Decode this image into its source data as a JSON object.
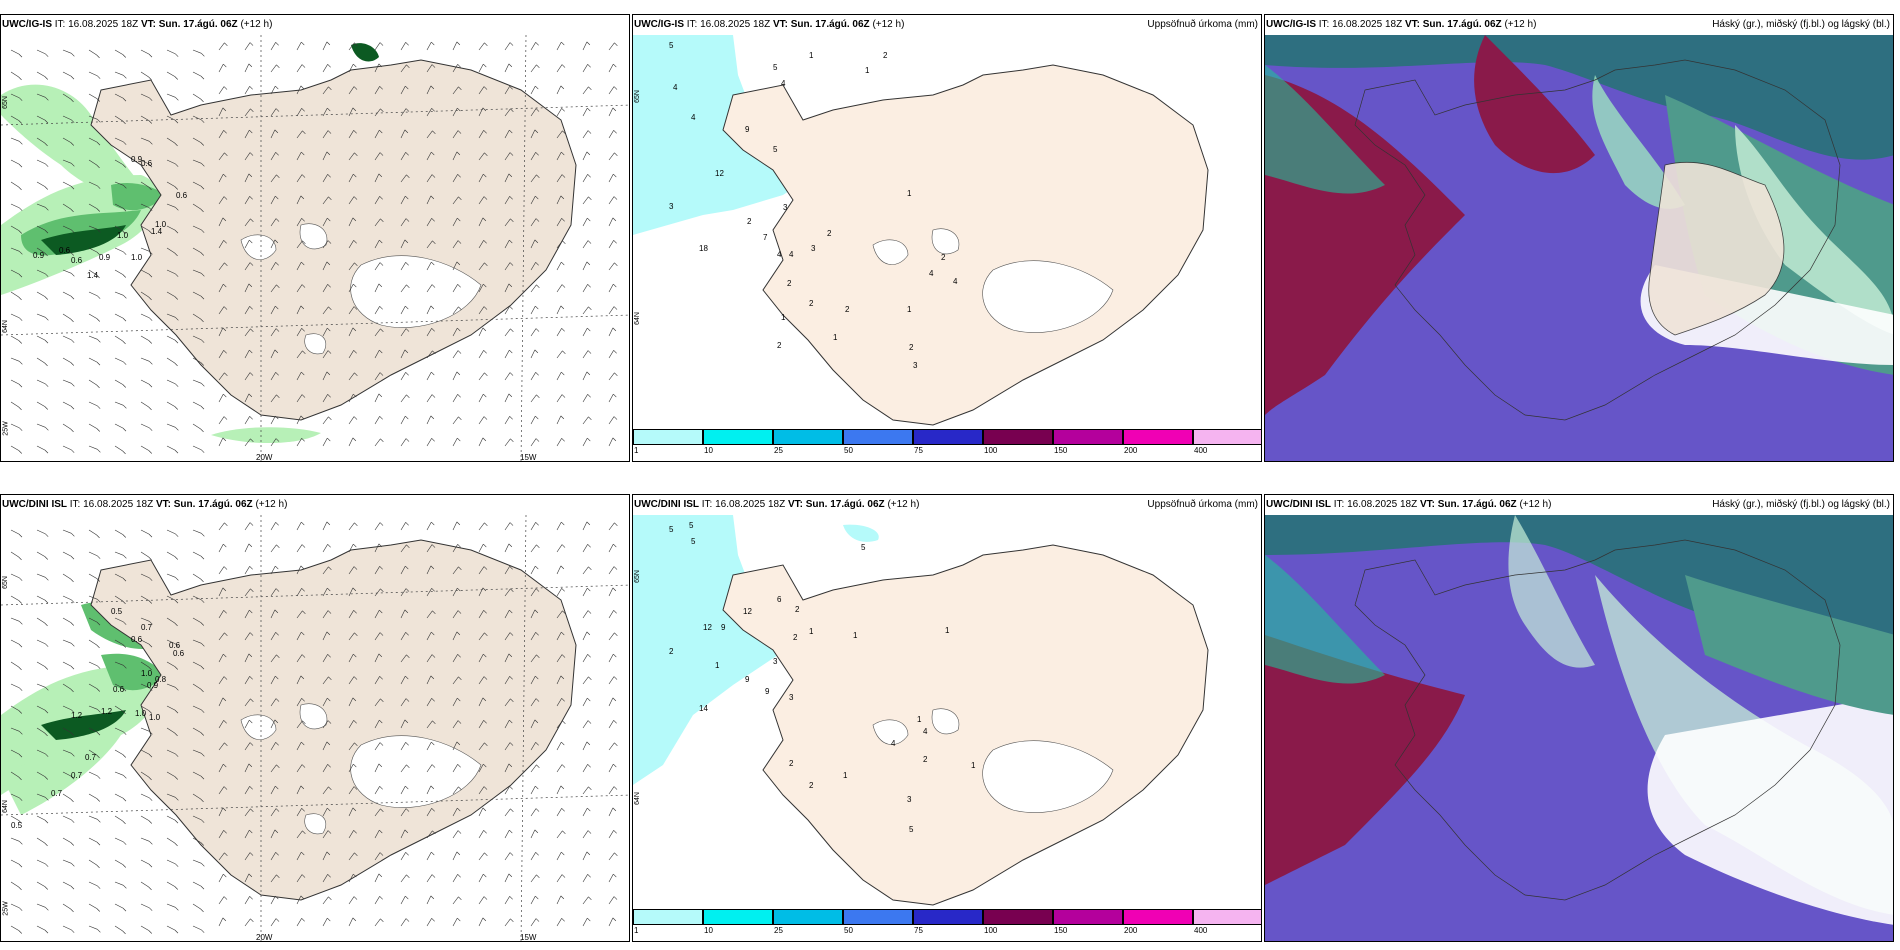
{
  "rows": [
    {
      "model": "UWC/IG-IS",
      "init": "IT: 16.08.2025 18Z",
      "valid_prefix": "VT:",
      "valid": "Sun. 17.ágú. 06Z",
      "lead": "(+12 h)",
      "precip_title": "Uppsöfnuð úrkoma (mm)",
      "cloud_title": "Háský (gr.), miðský (fj.bl.) og lágský (bl.)",
      "wind_values": [
        "0.9",
        "0.6",
        "0.6",
        "0.6",
        "1.0",
        "1.0",
        "0.9",
        "0.6",
        "0.9",
        "1.0",
        "1.4",
        "1.4"
      ],
      "precip_values": [
        "5",
        "1",
        "2",
        "1",
        "4",
        "4",
        "5",
        "4",
        "9",
        "5",
        "12",
        "3",
        "3",
        "2",
        "7",
        "4",
        "4",
        "18",
        "3",
        "2",
        "1",
        "2",
        "4",
        "4",
        "2",
        "2",
        "1",
        "2",
        "2",
        "1",
        "1",
        "2",
        "3"
      ]
    },
    {
      "model": "UWC/DINI ISL",
      "init": "IT: 16.08.2025 18Z",
      "valid_prefix": "VT:",
      "valid": "Sun. 17.ágú. 06Z",
      "lead": "(+12 h)",
      "precip_title": "Uppsöfnuð úrkoma (mm)",
      "cloud_title": "Háský (gr.), miðský (fj.bl.) og lágský (bl.)",
      "wind_values": [
        "0.5",
        "0.7",
        "0.6",
        "0.6",
        "0.6",
        "1.0",
        "0.8",
        "0.9",
        "0.6",
        "1.2",
        "1.2",
        "1.0",
        "1.0",
        "0.7",
        "0.7",
        "0.7",
        "0.5"
      ],
      "precip_values": [
        "5",
        "5",
        "5",
        "2",
        "5",
        "12",
        "6",
        "2",
        "12",
        "9",
        "9",
        "2",
        "1",
        "1",
        "1",
        "3",
        "9",
        "3",
        "14",
        "1",
        "4",
        "1",
        "4",
        "2",
        "2",
        "2",
        "1",
        "1",
        "3",
        "5"
      ]
    }
  ],
  "wind_axes": {
    "lon_labels": [
      "20W",
      "15W"
    ],
    "lat_labels": [
      "65N",
      "64N",
      "25W"
    ]
  },
  "precip_axes": {
    "lat_labels": [
      "65N",
      "64N"
    ]
  },
  "colorbar": {
    "ticks": [
      "1",
      "10",
      "25",
      "50",
      "75",
      "100",
      "150",
      "200",
      "400"
    ],
    "colors": [
      "#b5fafa",
      "#00f0f0",
      "#00bde6",
      "#3c78f0",
      "#2828c8",
      "#780050",
      "#b4009c",
      "#f000b4",
      "#f5b4f0"
    ]
  },
  "colors": {
    "land": "#efe4d8",
    "precip_land": "#fbeee2",
    "sea_precip": "#b5fafa",
    "green_light": "#b7f0b7",
    "green_mid": "#5fbf6f",
    "green_dark": "#0c5a22"
  }
}
